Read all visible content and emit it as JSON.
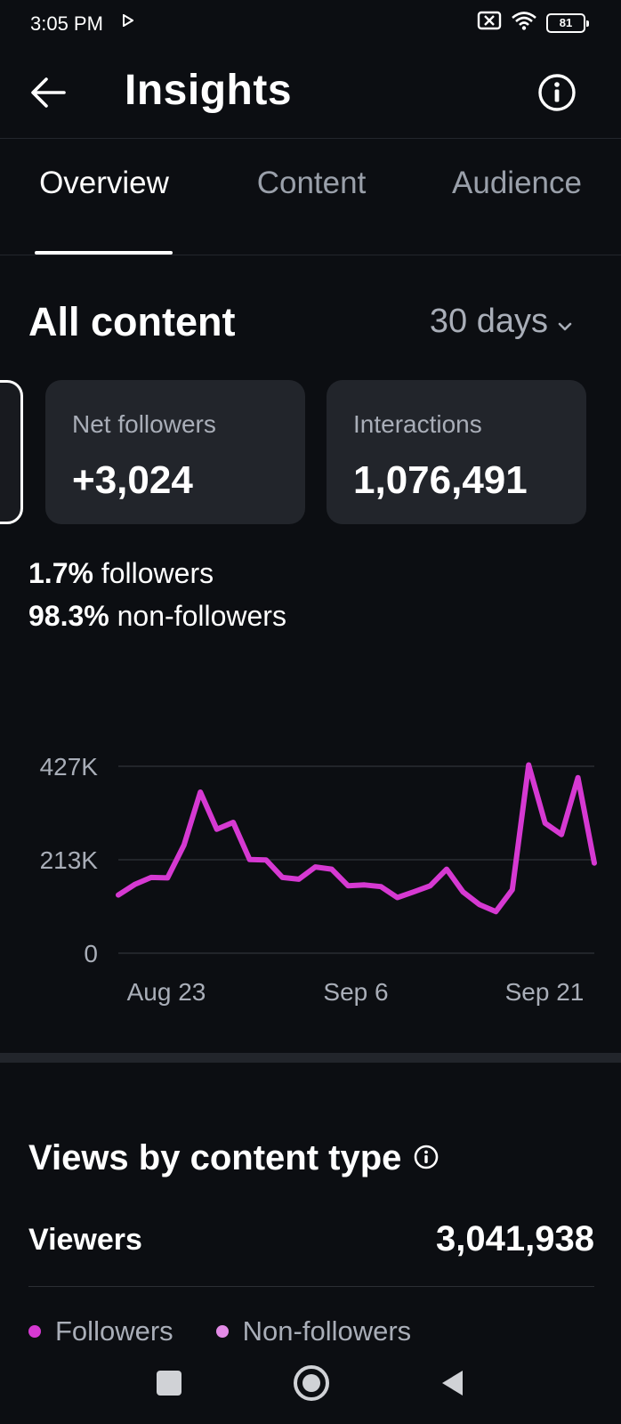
{
  "status": {
    "time": "3:05 PM",
    "battery": "81"
  },
  "header": {
    "title": "Insights"
  },
  "tabs": [
    {
      "label": "Overview",
      "active": true
    },
    {
      "label": "Content",
      "active": false
    },
    {
      "label": "Audience",
      "active": false
    }
  ],
  "section": {
    "title": "All content",
    "range": "30 days"
  },
  "cards": [
    {
      "label": "Net followers",
      "value": "+3,024"
    },
    {
      "label": "Interactions",
      "value": "1,076,491"
    }
  ],
  "split": {
    "followers_pct": "1.7%",
    "followers_label": "followers",
    "nonfollowers_pct": "98.3%",
    "nonfollowers_label": "non-followers"
  },
  "chart_data": {
    "type": "line",
    "y_ticks": [
      "427K",
      "213K",
      "0"
    ],
    "x_ticks": [
      "Aug 23",
      "Sep 6",
      "Sep 21"
    ],
    "ylim": [
      0,
      427
    ],
    "grid": true,
    "series": [
      {
        "color": "#d639d2",
        "values": [
          133,
          157,
          173,
          172,
          247,
          368,
          283,
          299,
          214,
          213,
          173,
          169,
          197,
          192,
          154,
          156,
          152,
          127,
          140,
          154,
          192,
          140,
          111,
          95,
          145,
          430,
          297,
          271,
          401,
          206
        ]
      }
    ]
  },
  "views": {
    "title": "Views by content type",
    "viewers_label": "Viewers",
    "viewers_value": "3,041,938",
    "legend": [
      {
        "label": "Followers",
        "color": "#d639d2"
      },
      {
        "label": "Non-followers",
        "color": "#e38be6"
      }
    ]
  }
}
